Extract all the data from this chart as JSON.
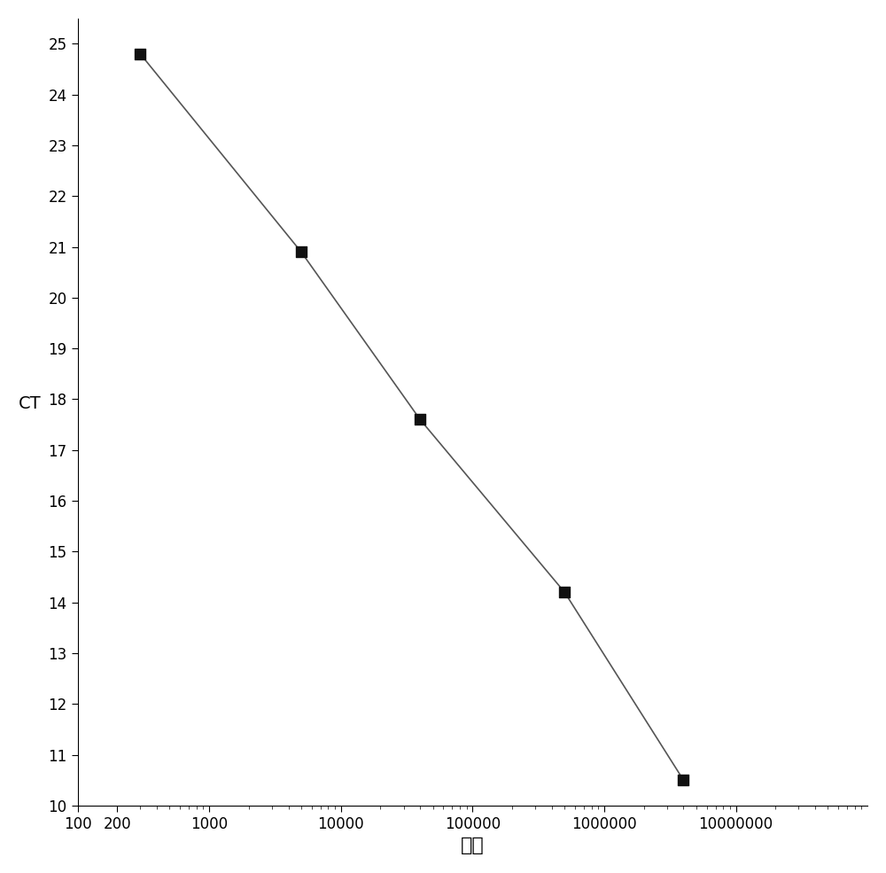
{
  "x_data": [
    300,
    5000,
    40000,
    500000,
    4000000
  ],
  "y_data": [
    24.8,
    20.9,
    17.6,
    14.2,
    10.5
  ],
  "xlabel": "浓度",
  "ylabel": "CT",
  "xlim_log": [
    100,
    100000000
  ],
  "ylim": [
    10,
    25.5
  ],
  "yticks": [
    10,
    11,
    12,
    13,
    14,
    15,
    16,
    17,
    18,
    19,
    20,
    21,
    22,
    23,
    24,
    25
  ],
  "xtick_labels": [
    "100",
    "200",
    "",
    "1000",
    "",
    "10000",
    "",
    "100000",
    "",
    "1000000",
    "",
    "10000000"
  ],
  "line_color": "#555555",
  "marker_color": "#111111",
  "marker_size": 9,
  "line_width": 1.2,
  "background_color": "#ffffff",
  "xlabel_fontsize": 16,
  "ylabel_fontsize": 14,
  "tick_fontsize": 12
}
